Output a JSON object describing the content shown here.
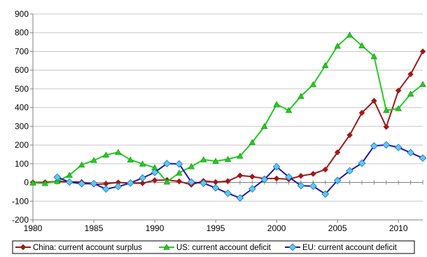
{
  "chart_data": {
    "type": "line",
    "title": "",
    "xlabel": "",
    "ylabel": "",
    "xlim": [
      1980,
      2012
    ],
    "ylim": [
      -200,
      900
    ],
    "x_ticks": [
      "1980",
      "1985",
      "1990",
      "1995",
      "2000",
      "2005",
      "2010"
    ],
    "y_ticks": [
      "-200",
      "-100",
      "0",
      "100",
      "200",
      "300",
      "400",
      "500",
      "600",
      "700",
      "800",
      "900"
    ],
    "grid": "horizontal",
    "legend_position": "bottom",
    "series": [
      {
        "name": "China: current account surplus",
        "color": "#a01818",
        "marker": "diamond",
        "x": [
          1980,
          1981,
          1982,
          1983,
          1984,
          1985,
          1986,
          1987,
          1988,
          1989,
          1990,
          1991,
          1992,
          1993,
          1994,
          1995,
          1996,
          1997,
          1998,
          1999,
          2000,
          2001,
          2002,
          2003,
          2004,
          2005,
          2006,
          2007,
          2008,
          2009,
          2010,
          2011,
          2012
        ],
        "y": [
          0,
          1,
          6,
          4,
          2,
          -11,
          -7,
          0,
          -4,
          -4,
          12,
          13,
          6,
          -12,
          8,
          2,
          7,
          37,
          31,
          21,
          21,
          17,
          35,
          46,
          69,
          161,
          253,
          372,
          436,
          297,
          491,
          578,
          700
        ]
      },
      {
        "name": "US: current account deficit",
        "color": "#22cc22",
        "marker": "triangle",
        "x": [
          1980,
          1981,
          1982,
          1983,
          1984,
          1985,
          1986,
          1987,
          1988,
          1989,
          1990,
          1991,
          1992,
          1993,
          1994,
          1995,
          1996,
          1997,
          1998,
          1999,
          2000,
          2001,
          2002,
          2003,
          2004,
          2005,
          2006,
          2007,
          2008,
          2009,
          2010,
          2011,
          2012
        ],
        "y": [
          -2,
          -5,
          6,
          39,
          94,
          118,
          147,
          161,
          121,
          99,
          79,
          3,
          51,
          85,
          122,
          114,
          124,
          141,
          214,
          300,
          417,
          385,
          461,
          523,
          625,
          729,
          788,
          731,
          673,
          385,
          395,
          473,
          524
        ]
      },
      {
        "name": "EU: current account deficit",
        "color": "#1818b0",
        "marker": "circle-diamond",
        "x": [
          1982,
          1983,
          1984,
          1985,
          1986,
          1987,
          1988,
          1989,
          1990,
          1991,
          1992,
          1993,
          1994,
          1995,
          1996,
          1997,
          1998,
          1999,
          2000,
          2001,
          2002,
          2003,
          2004,
          2005,
          2006,
          2007,
          2008,
          2009,
          2010,
          2011,
          2012
        ],
        "y": [
          28,
          2,
          -7,
          -6,
          -35,
          -22,
          -3,
          24,
          54,
          101,
          99,
          2,
          -4,
          -29,
          -58,
          -83,
          -34,
          16,
          84,
          29,
          -17,
          -20,
          -62,
          11,
          62,
          103,
          195,
          201,
          187,
          159,
          130
        ]
      }
    ]
  }
}
